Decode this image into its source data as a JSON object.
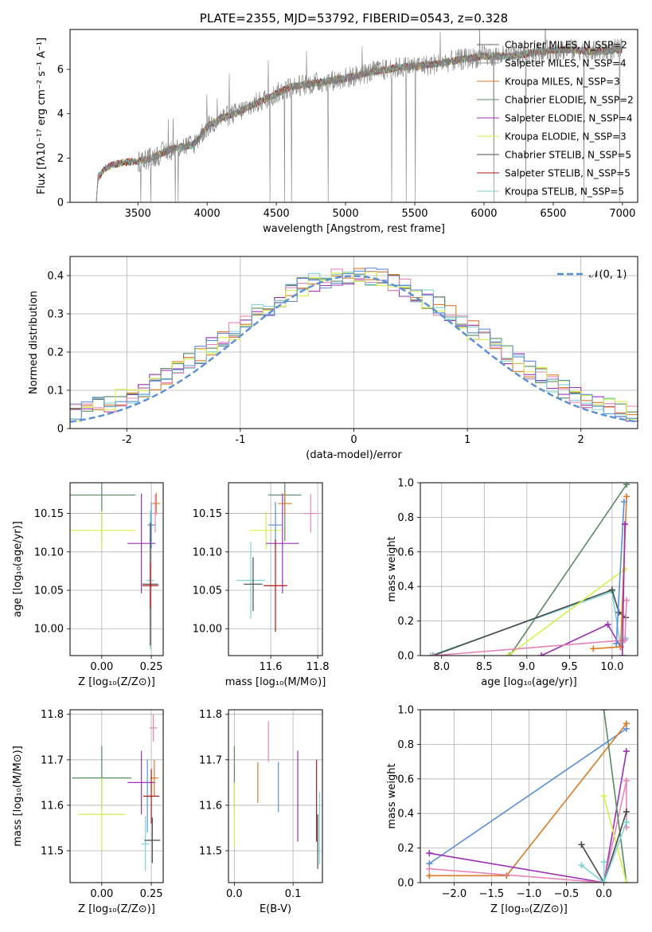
{
  "chart_data": [
    {
      "id": "spectrum",
      "type": "line",
      "title": "PLATE=2355, MJD=53792, FIBERID=0543, z=0.328",
      "xlabel": "wavelength [Angstrom, rest frame]",
      "ylabel": "Flux [fλ10⁻¹⁷ erg cm⁻² s⁻¹ A⁻¹]",
      "xlim": [
        3010,
        7110
      ],
      "ylim": [
        0,
        7.8
      ],
      "xticks": [
        3500,
        4000,
        4500,
        5000,
        5500,
        6000,
        6500,
        7000
      ],
      "yticks": [
        0,
        2,
        4,
        6
      ],
      "legend_position": "upper-right",
      "legend": [
        {
          "label": "Chabrier MILES, N_SSP=2",
          "color": "#606060"
        },
        {
          "label": "Salpeter MILES, N_SSP=4",
          "color": "#8c8c8c"
        },
        {
          "label": "Kroupa MILES, N_SSP=3",
          "color": "#d97b29"
        },
        {
          "label": "Chabrier ELODIE, N_SSP=2",
          "color": "#5a8a62"
        },
        {
          "label": "Salpeter ELODIE, N_SSP=4",
          "color": "#9b30b5"
        },
        {
          "label": "Kroupa ELODIE, N_SSP=3",
          "color": "#d6f04a"
        },
        {
          "label": "Chabrier STELIB, N_SSP=5",
          "color": "#4a4a4a"
        },
        {
          "label": "Salpeter STELIB, N_SSP=5",
          "color": "#b01515"
        },
        {
          "label": "Kroupa STELIB, N_SSP=5",
          "color": "#7fd3d3"
        }
      ],
      "continuum_points": [
        [
          3200,
          0
        ],
        [
          3210,
          1.1
        ],
        [
          3260,
          1.5
        ],
        [
          3320,
          1.7
        ],
        [
          3400,
          1.8
        ],
        [
          3500,
          1.85
        ],
        [
          3600,
          2.0
        ],
        [
          3700,
          2.3
        ],
        [
          3800,
          2.5
        ],
        [
          3900,
          2.6
        ],
        [
          4000,
          3.4
        ],
        [
          4100,
          3.8
        ],
        [
          4200,
          4.0
        ],
        [
          4300,
          4.3
        ],
        [
          4400,
          4.6
        ],
        [
          4500,
          4.9
        ],
        [
          4600,
          5.2
        ],
        [
          4700,
          5.3
        ],
        [
          4800,
          5.4
        ],
        [
          4900,
          5.5
        ],
        [
          5000,
          5.6
        ],
        [
          5200,
          5.9
        ],
        [
          5400,
          6.1
        ],
        [
          5600,
          6.2
        ],
        [
          5800,
          6.4
        ],
        [
          6000,
          6.6
        ],
        [
          6200,
          6.6
        ],
        [
          6400,
          6.8
        ],
        [
          6600,
          6.9
        ],
        [
          6800,
          6.8
        ],
        [
          7000,
          6.9
        ]
      ]
    },
    {
      "id": "residuals",
      "type": "line",
      "xlabel": "(data-model)/error",
      "ylabel": "Normed distribution",
      "xlim": [
        -2.5,
        2.5
      ],
      "ylim": [
        0,
        0.45
      ],
      "xticks": [
        -2,
        -1,
        0,
        1,
        2
      ],
      "yticks": [
        0.0,
        0.1,
        0.2,
        0.3,
        0.4
      ],
      "legend_position": "upper-right",
      "legend_label": "𝒩(0, 1)",
      "gaussian": {
        "mean": 0,
        "sigma": 1,
        "color": "#5a8fd6"
      },
      "hist_bins": {
        "start": -2.5,
        "width": 0.1,
        "count": 50
      },
      "hist_colors": [
        "#9b30b5",
        "#d97b29",
        "#5a8a62",
        "#7fd3d3",
        "#e684b8",
        "#d6f04a",
        "#5a8fd6"
      ]
    },
    {
      "id": "age-vs-Z",
      "type": "scatter",
      "xlabel": "Z [log₁₀(Z/Z⊙)]",
      "ylabel": "age  [log₁₀(age/yr)]",
      "xlim": [
        -0.16,
        0.31
      ],
      "ylim": [
        9.965,
        10.19
      ],
      "xticks": [
        0.0,
        0.25
      ],
      "xticklabels": [
        "0.00",
        "0.25"
      ],
      "yticks": [
        10.0,
        10.05,
        10.1,
        10.15
      ],
      "yticklabels": [
        "10.00",
        "10.05",
        "10.10",
        "10.15"
      ],
      "points": [
        {
          "x": 0.0,
          "y": 10.174,
          "xerr": 0.17,
          "yerr": 0.06,
          "color": "#5a8a62"
        },
        {
          "x": 0.0,
          "y": 10.128,
          "xerr": 0.17,
          "yerr": 0.025,
          "color": "#d6f04a"
        },
        {
          "x": 0.2,
          "y": 10.111,
          "xerr": 0.07,
          "yerr": 0.065,
          "color": "#9b30b5"
        },
        {
          "x": 0.275,
          "y": 10.163,
          "xerr": 0.02,
          "yerr": 0.014,
          "color": "#d97b29"
        },
        {
          "x": 0.27,
          "y": 10.15,
          "xerr": 0.015,
          "yerr": 0.025,
          "color": "#e684b8"
        },
        {
          "x": 0.25,
          "y": 10.135,
          "xerr": 0.02,
          "yerr": 0.03,
          "color": "#5a8fd6"
        },
        {
          "x": 0.245,
          "y": 10.063,
          "xerr": 0.02,
          "yerr": 0.09,
          "color": "#7fd3d3"
        },
        {
          "x": 0.245,
          "y": 10.058,
          "xerr": 0.04,
          "yerr": 0.08,
          "color": "#4a4a4a"
        },
        {
          "x": 0.245,
          "y": 10.056,
          "xerr": 0.04,
          "yerr": 0.03,
          "color": "#b01515"
        }
      ]
    },
    {
      "id": "age-vs-mass",
      "type": "scatter",
      "xlabel": "mass [log₁₀(M/M⊙)]",
      "ylabel": "",
      "xlim": [
        11.42,
        11.82
      ],
      "ylim": [
        9.965,
        10.19
      ],
      "xticks": [
        11.6,
        11.8
      ],
      "xticklabels": [
        "11.6",
        "11.8"
      ],
      "yticks": [
        10.0,
        10.05,
        10.1,
        10.15
      ],
      "yticklabels": [
        "10.00",
        "10.05",
        "10.10",
        "10.15"
      ],
      "points": [
        {
          "x": 11.66,
          "y": 10.174,
          "xerr": 0.07,
          "yerr": 0.06,
          "color": "#5a8a62"
        },
        {
          "x": 11.58,
          "y": 10.128,
          "xerr": 0.07,
          "yerr": 0.025,
          "color": "#d6f04a"
        },
        {
          "x": 11.65,
          "y": 10.111,
          "xerr": 0.07,
          "yerr": 0.065,
          "color": "#9b30b5"
        },
        {
          "x": 11.66,
          "y": 10.163,
          "xerr": 0.03,
          "yerr": 0.014,
          "color": "#d97b29"
        },
        {
          "x": 11.77,
          "y": 10.15,
          "xerr": 0.03,
          "yerr": 0.025,
          "color": "#e684b8"
        },
        {
          "x": 11.62,
          "y": 10.135,
          "xerr": 0.03,
          "yerr": 0.03,
          "color": "#5a8fd6"
        },
        {
          "x": 11.515,
          "y": 10.063,
          "xerr": 0.06,
          "yerr": 0.05,
          "color": "#7fd3d3"
        },
        {
          "x": 11.525,
          "y": 10.058,
          "xerr": 0.04,
          "yerr": 0.035,
          "color": "#4a4a4a"
        },
        {
          "x": 11.62,
          "y": 10.056,
          "xerr": 0.05,
          "yerr": 0.06,
          "color": "#b01515"
        }
      ]
    },
    {
      "id": "weight-vs-age",
      "type": "line",
      "xlabel": "age  [log₁₀(age/yr)]",
      "ylabel": "mass weight",
      "xlim": [
        7.75,
        10.3
      ],
      "ylim": [
        0,
        1.0
      ],
      "xticks": [
        8.0,
        8.5,
        9.0,
        9.5,
        10.0
      ],
      "xticklabels": [
        "8.0",
        "8.5",
        "9.0",
        "9.5",
        "10.0"
      ],
      "yticks": [
        0,
        0.2,
        0.4,
        0.6,
        0.8,
        1.0
      ],
      "yticklabels": [
        "0.0",
        "0.2",
        "0.4",
        "0.6",
        "0.8",
        "1.0"
      ],
      "series": [
        {
          "color": "#5a8a62",
          "points": [
            [
              8.8,
              0.0
            ],
            [
              10.17,
              0.99
            ]
          ]
        },
        {
          "color": "#7fd3d3",
          "points": [
            [
              7.87,
              0.0
            ],
            [
              10.0,
              0.37
            ],
            [
              10.1,
              0.05
            ],
            [
              10.16,
              0.1
            ]
          ]
        },
        {
          "color": "#4a4a4a",
          "points": [
            [
              7.9,
              0.0
            ],
            [
              10.0,
              0.38
            ],
            [
              10.08,
              0.25
            ],
            [
              10.16,
              0.22
            ]
          ]
        },
        {
          "color": "#d6f04a",
          "points": [
            [
              8.78,
              0.0
            ],
            [
              10.15,
              0.5
            ]
          ]
        },
        {
          "color": "#9b30b5",
          "points": [
            [
              9.17,
              0.0
            ],
            [
              9.95,
              0.18
            ],
            [
              10.1,
              0.05
            ]
          ]
        },
        {
          "color": "#e684b8",
          "points": [
            [
              7.9,
              0.0
            ],
            [
              10.15,
              0.09
            ],
            [
              10.17,
              0.32
            ]
          ]
        },
        {
          "color": "#d97b29",
          "points": [
            [
              9.78,
              0.04
            ],
            [
              10.1,
              0.05
            ],
            [
              10.17,
              0.92
            ]
          ]
        },
        {
          "color": "#5a8fd6",
          "points": [
            [
              10.05,
              0.07
            ],
            [
              10.14,
              0.89
            ]
          ]
        },
        {
          "color": "#9b30b5",
          "points": [
            [
              10.12,
              0.0
            ],
            [
              10.15,
              0.76
            ]
          ]
        }
      ]
    },
    {
      "id": "mass-vs-Z",
      "type": "scatter",
      "xlabel": "Z [log₁₀(Z/Z⊙)]",
      "ylabel": "mass [log₁₀(M/M⊙)]",
      "xlim": [
        -0.16,
        0.31
      ],
      "ylim": [
        11.43,
        11.81
      ],
      "xticks": [
        0.0,
        0.25
      ],
      "xticklabels": [
        "0.00",
        "0.25"
      ],
      "yticks": [
        11.5,
        11.6,
        11.7,
        11.8
      ],
      "yticklabels": [
        "11.5",
        "11.6",
        "11.7",
        "11.8"
      ],
      "points": [
        {
          "x": 0.0,
          "y": 11.66,
          "xerr": 0.15,
          "yerr": 0.07,
          "color": "#5a8a62"
        },
        {
          "x": 0.0,
          "y": 11.58,
          "xerr": 0.12,
          "yerr": 0.08,
          "color": "#d6f04a"
        },
        {
          "x": 0.2,
          "y": 11.65,
          "xerr": 0.07,
          "yerr": 0.07,
          "color": "#9b30b5"
        },
        {
          "x": 0.265,
          "y": 11.66,
          "xerr": 0.02,
          "yerr": 0.04,
          "color": "#d97b29"
        },
        {
          "x": 0.26,
          "y": 11.77,
          "xerr": 0.02,
          "yerr": 0.03,
          "color": "#e684b8"
        },
        {
          "x": 0.23,
          "y": 11.62,
          "xerr": 0.02,
          "yerr": 0.08,
          "color": "#5a8fd6"
        },
        {
          "x": 0.22,
          "y": 11.515,
          "xerr": 0.02,
          "yerr": 0.06,
          "color": "#7fd3d3"
        },
        {
          "x": 0.255,
          "y": 11.523,
          "xerr": 0.04,
          "yerr": 0.05,
          "color": "#4a4a4a"
        },
        {
          "x": 0.25,
          "y": 11.62,
          "xerr": 0.04,
          "yerr": 0.06,
          "color": "#b01515"
        }
      ]
    },
    {
      "id": "mass-vs-EBV",
      "type": "scatter",
      "xlabel": "E(B-V)",
      "ylabel": "",
      "xlim": [
        -0.01,
        0.15
      ],
      "ylim": [
        11.43,
        11.81
      ],
      "xticks": [
        0.0,
        0.1
      ],
      "xticklabels": [
        "0.0",
        "0.1"
      ],
      "yticks": [
        11.5,
        11.6,
        11.7,
        11.8
      ],
      "yticklabels": [
        "11.5",
        "11.6",
        "11.7",
        "11.8"
      ],
      "points": [
        {
          "x": 0.0,
          "y": 11.66,
          "xerr": 0,
          "yerr": 0.07,
          "color": "#5a8a62"
        },
        {
          "x": 0.0,
          "y": 11.58,
          "xerr": 0,
          "yerr": 0.07,
          "color": "#d6f04a"
        },
        {
          "x": 0.04,
          "y": 11.65,
          "xerr": 0,
          "yerr": 0.045,
          "color": "#d97b29"
        },
        {
          "x": 0.058,
          "y": 11.74,
          "xerr": 0,
          "yerr": 0.045,
          "color": "#e684b8"
        },
        {
          "x": 0.075,
          "y": 11.64,
          "xerr": 0,
          "yerr": 0.055,
          "color": "#5a8fd6"
        },
        {
          "x": 0.108,
          "y": 11.62,
          "xerr": 0,
          "yerr": 0.1,
          "color": "#9b30b5"
        },
        {
          "x": 0.14,
          "y": 11.61,
          "xerr": 0,
          "yerr": 0.09,
          "color": "#b01515"
        },
        {
          "x": 0.142,
          "y": 11.52,
          "xerr": 0,
          "yerr": 0.06,
          "color": "#4a4a4a"
        },
        {
          "x": 0.145,
          "y": 11.55,
          "xerr": 0,
          "yerr": 0.08,
          "color": "#7fd3d3"
        }
      ]
    },
    {
      "id": "weight-vs-Z",
      "type": "line",
      "xlabel": "Z [log₁₀(Z/Z⊙)]",
      "ylabel": "mass weight",
      "xlim": [
        -2.45,
        0.45
      ],
      "ylim": [
        0,
        1.0
      ],
      "xticks": [
        -2.0,
        -1.5,
        -1.0,
        -0.5,
        0.0
      ],
      "xticklabels": [
        "−2.0",
        "−1.5",
        "−1.0",
        "−0.5",
        "0.0"
      ],
      "yticks": [
        0,
        0.2,
        0.4,
        0.6,
        0.8,
        1.0
      ],
      "yticklabels": [
        "0.0",
        "0.2",
        "0.4",
        "0.6",
        "0.8",
        "1.0"
      ],
      "series": [
        {
          "color": "#5a8fd6",
          "points": [
            [
              -2.33,
              0.11
            ],
            [
              0.3,
              0.89
            ]
          ]
        },
        {
          "color": "#d97b29",
          "points": [
            [
              -2.33,
              0.04
            ],
            [
              -1.3,
              0.04
            ],
            [
              0.3,
              0.92
            ]
          ]
        },
        {
          "color": "#9b30b5",
          "points": [
            [
              -2.33,
              0.17
            ],
            [
              0.0,
              0.0
            ],
            [
              0.3,
              0.76
            ]
          ]
        },
        {
          "color": "#e684b8",
          "points": [
            [
              -2.33,
              0.08
            ],
            [
              0.0,
              0.0
            ],
            [
              0.3,
              0.59
            ],
            [
              0.3,
              0.32
            ]
          ]
        },
        {
          "color": "#5a8a62",
          "points": [
            [
              0.0,
              1.0
            ],
            [
              0.3,
              0.0
            ]
          ]
        },
        {
          "color": "#d6f04a",
          "points": [
            [
              0.0,
              0.5
            ],
            [
              0.3,
              0.0
            ]
          ]
        },
        {
          "color": "#4a4a4a",
          "points": [
            [
              -0.3,
              0.22
            ],
            [
              0.0,
              0.0
            ],
            [
              0.3,
              0.41
            ]
          ]
        },
        {
          "color": "#7fd3d3",
          "points": [
            [
              -0.3,
              0.1
            ],
            [
              0.0,
              0.0
            ],
            [
              0.3,
              0.35
            ]
          ]
        },
        {
          "color": "#7fd3d3",
          "points": [
            [
              0.0,
              0.12
            ],
            [
              0.0,
              0.0
            ]
          ]
        }
      ]
    }
  ]
}
